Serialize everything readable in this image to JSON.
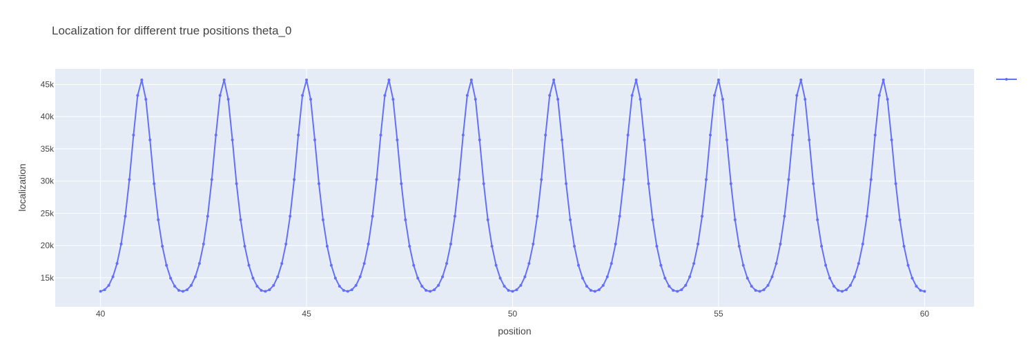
{
  "chart_data": {
    "type": "line",
    "title": "Localization for different true positions theta_0",
    "xlabel": "position",
    "ylabel": "localization",
    "xlim": [
      38.9,
      61.2
    ],
    "ylim": [
      10500,
      47400
    ],
    "x_ticks": [
      40,
      45,
      50,
      55,
      60
    ],
    "x_tick_labels": [
      "40",
      "45",
      "50",
      "55",
      "60"
    ],
    "y_ticks": [
      15000,
      20000,
      25000,
      30000,
      35000,
      40000,
      45000
    ],
    "y_tick_labels": [
      "15k",
      "20k",
      "25k",
      "30k",
      "35k",
      "40k",
      "45k"
    ],
    "grid": true,
    "legend": "top-right",
    "line_color": "#636efa",
    "plot_bgcolor": "#e5ecf6",
    "series": [
      {
        "x_start": 40,
        "x_step": 0.1,
        "values": [
          12900,
          13150,
          13830,
          15160,
          17220,
          20250,
          24550,
          30250,
          37150,
          43300,
          45700,
          42700,
          36400,
          29600,
          24000,
          19900,
          16950,
          14950,
          13700,
          13050,
          12900,
          13150,
          13830,
          15160,
          17220,
          20250,
          24550,
          30250,
          37150,
          43300,
          45700,
          42700,
          36400,
          29600,
          24000,
          19900,
          16950,
          14950,
          13700,
          13050,
          12900,
          13150,
          13830,
          15160,
          17220,
          20250,
          24550,
          30250,
          37150,
          43300,
          45700,
          42700,
          36400,
          29600,
          24000,
          19900,
          16950,
          14950,
          13700,
          13050,
          12900,
          13150,
          13830,
          15160,
          17220,
          20250,
          24550,
          30250,
          37150,
          43300,
          45700,
          42700,
          36400,
          29600,
          24000,
          19900,
          16950,
          14950,
          13700,
          13050,
          12900,
          13150,
          13830,
          15160,
          17220,
          20250,
          24550,
          30250,
          37150,
          43300,
          45700,
          42700,
          36400,
          29600,
          24000,
          19900,
          16950,
          14950,
          13700,
          13050,
          12900,
          13150,
          13830,
          15160,
          17220,
          20250,
          24550,
          30250,
          37150,
          43300,
          45700,
          42700,
          36400,
          29600,
          24000,
          19900,
          16950,
          14950,
          13700,
          13050,
          12900,
          13150,
          13830,
          15160,
          17220,
          20250,
          24550,
          30250,
          37150,
          43300,
          45700,
          42700,
          36400,
          29600,
          24000,
          19900,
          16950,
          14950,
          13700,
          13050,
          12900,
          13150,
          13830,
          15160,
          17220,
          20250,
          24550,
          30250,
          37150,
          43300,
          45700,
          42700,
          36400,
          29600,
          24000,
          19900,
          16950,
          14950,
          13700,
          13050,
          12900,
          13150,
          13830,
          15160,
          17220,
          20250,
          24550,
          30250,
          37150,
          43300,
          45700,
          42700,
          36400,
          29600,
          24000,
          19900,
          16950,
          14950,
          13700,
          13050,
          12900,
          13150,
          13830,
          15160,
          17220,
          20250,
          24550,
          30250,
          37150,
          43300,
          45700,
          42700,
          36400,
          29600,
          24000,
          19900,
          16950,
          14950,
          13700,
          13050,
          12900
        ]
      }
    ]
  }
}
